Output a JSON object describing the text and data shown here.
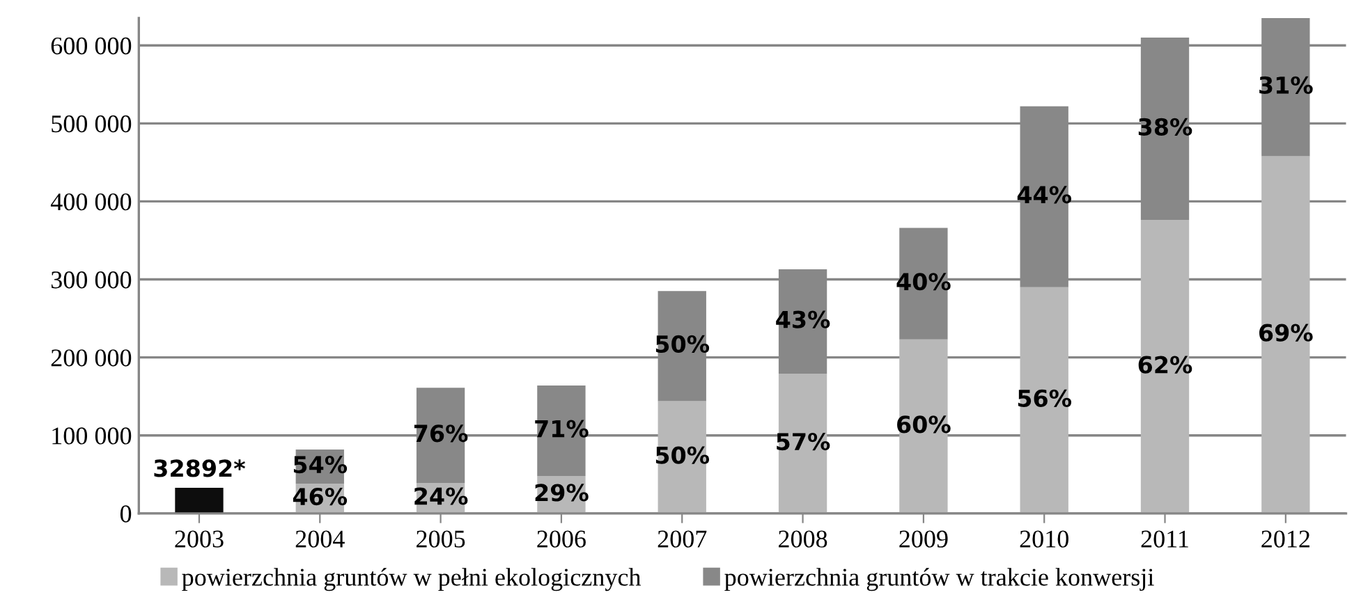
{
  "chart_data": {
    "type": "bar",
    "stacked": true,
    "categories": [
      "2003",
      "2004",
      "2005",
      "2006",
      "2007",
      "2008",
      "2009",
      "2010",
      "2011",
      "2012"
    ],
    "series": [
      {
        "color": "#0d0d0d",
        "values": [
          32892,
          null,
          null,
          null,
          null,
          null,
          null,
          null,
          null,
          null
        ],
        "value_labels": [
          "32892*",
          null,
          null,
          null,
          null,
          null,
          null,
          null,
          null,
          null
        ]
      },
      {
        "name": "powierzchnia gruntów w pełni ekologicznych",
        "color": "#b8b8b8",
        "values": [
          null,
          38000,
          39000,
          48000,
          144000,
          179000,
          223000,
          290000,
          376000,
          458000
        ]
      },
      {
        "name": "powierzchnia gruntów w trakcie konwersji",
        "color": "#888888",
        "values": [
          null,
          44000,
          122000,
          116000,
          141000,
          134000,
          143000,
          232000,
          234000,
          177000
        ]
      }
    ],
    "annotations": [
      "46%",
      "24%",
      "29%",
      "50%",
      "57%",
      "60%",
      "56%",
      "62%",
      "69%",
      "54%",
      "76%",
      "71%",
      "50%",
      "43%",
      "40%",
      "44%",
      "38%",
      "31%"
    ],
    "ylim": [
      0,
      635000
    ],
    "yticks": [
      {
        "value": 0,
        "label": "0"
      },
      {
        "value": 100000,
        "label": "100 000"
      },
      {
        "value": 200000,
        "label": "200 000"
      },
      {
        "value": 300000,
        "label": "300 000"
      },
      {
        "value": 400000,
        "label": "400 000"
      },
      {
        "value": 500000,
        "label": "500 000"
      },
      {
        "value": 600000,
        "label": "600 000"
      }
    ],
    "grid": "y",
    "legend": "bottom"
  }
}
